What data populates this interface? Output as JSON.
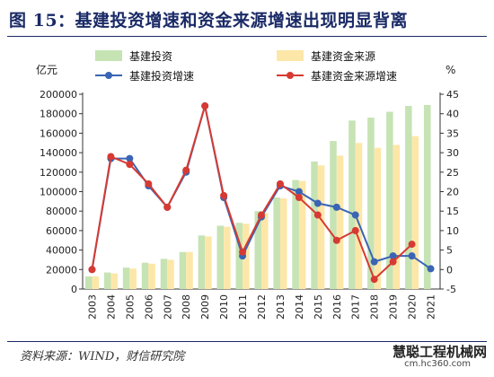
{
  "title": "图 15：基建投资增速和资金来源增速出现明显背离",
  "source": "资料来源：WIND，财信研究院",
  "watermark": {
    "name": "慧聪工程机械网",
    "url": "cm.hc360.com"
  },
  "chart_data": {
    "type": "bar",
    "categories": [
      "2003",
      "2004",
      "2005",
      "2006",
      "2007",
      "2008",
      "2009",
      "2010",
      "2011",
      "2012",
      "2013",
      "2014",
      "2015",
      "2016",
      "2017",
      "2018",
      "2019",
      "2020",
      "2021"
    ],
    "left_axis": {
      "unit": "亿元",
      "min": 0,
      "max": 200000,
      "ticks": [
        "0",
        "20000",
        "40000",
        "60000",
        "80000",
        "100000",
        "120000",
        "140000",
        "160000",
        "180000",
        "200000"
      ]
    },
    "right_axis": {
      "unit": "%",
      "min": -5,
      "max": 45,
      "ticks": [
        "-5",
        "0",
        "5",
        "10",
        "15",
        "20",
        "25",
        "30",
        "35",
        "40",
        "45"
      ]
    },
    "legend_placement": "top",
    "series": [
      {
        "name": "基建投资",
        "type": "bar",
        "axis": "left",
        "color": "#c6e3b4",
        "values": [
          13000,
          17000,
          22000,
          27000,
          31000,
          38000,
          55000,
          65000,
          68000,
          80000,
          94000,
          112000,
          131000,
          152000,
          173000,
          176000,
          182000,
          188000,
          189000
        ]
      },
      {
        "name": "基建资金来源",
        "type": "bar",
        "axis": "left",
        "color": "#fde7a8",
        "values": [
          13000,
          16000,
          21000,
          26000,
          30000,
          38000,
          54000,
          64000,
          67000,
          78000,
          93000,
          111000,
          127000,
          137000,
          150000,
          145000,
          148000,
          157000,
          null
        ]
      },
      {
        "name": "基建投资增速",
        "type": "line",
        "axis": "right",
        "color": "#3a64b4",
        "values": [
          0,
          28.5,
          28.5,
          21.5,
          16,
          25,
          42,
          18.5,
          3.5,
          13.5,
          21.5,
          20,
          17,
          16,
          14,
          2,
          3.5,
          3.5,
          0.2
        ]
      },
      {
        "name": "基建资金来源增速",
        "type": "line",
        "axis": "right",
        "color": "#d63a33",
        "values": [
          0,
          29,
          27,
          22,
          16,
          25.5,
          42,
          19,
          4.5,
          14,
          22,
          18.5,
          14,
          7.5,
          10,
          -2.5,
          2,
          6.5,
          null
        ]
      }
    ]
  }
}
